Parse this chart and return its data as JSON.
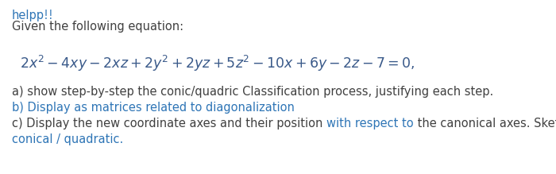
{
  "bg_color": "#ffffff",
  "text_color_dark": "#404040",
  "text_color_blue": "#2e75b6",
  "text_color_eq": "#3a5a8a",
  "line1": "helpp!!",
  "line2": "Given the following equation:",
  "item_a": "a) show step-by-step the conic/quadric Classification process, justifying each step.",
  "item_b": "b) Display as matrices related to diagonalization",
  "item_c1_pre": "c) Display the new coordinate axes and their position ",
  "item_c1_blue": "with respect to",
  "item_c1_post": " the canonical axes. Sketch the",
  "item_c2": "conical / quadratic.",
  "font_size_text": 10.5,
  "font_size_eq": 12.5,
  "figsize": [
    7.0,
    2.19
  ],
  "dpi": 100
}
